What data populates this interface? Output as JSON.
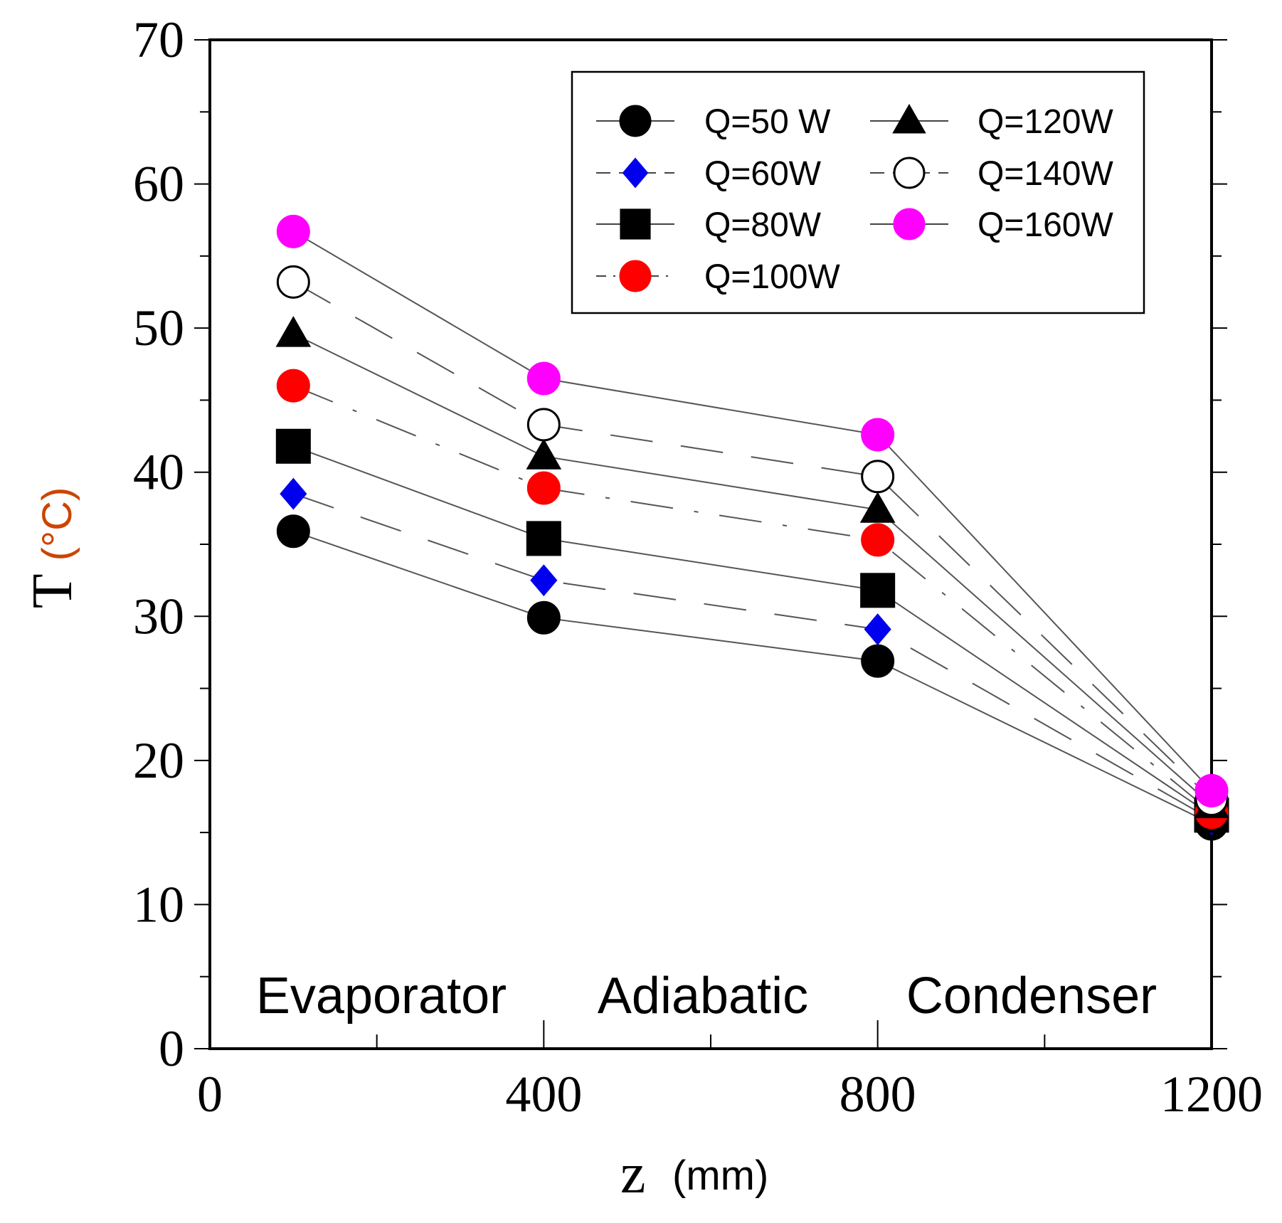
{
  "chart_data": {
    "type": "line",
    "title": "",
    "xlabel": {
      "symbol": "z",
      "unit": "(mm)"
    },
    "ylabel": {
      "symbol": "T",
      "unit": "(°C)"
    },
    "xlim": [
      0,
      1200
    ],
    "ylim": [
      0,
      70
    ],
    "x_ticks": [
      0,
      400,
      800,
      1200
    ],
    "y_ticks": [
      0,
      10,
      20,
      30,
      40,
      50,
      60,
      70
    ],
    "grid": false,
    "legend_position": "top-right",
    "regions": [
      "Evaporator",
      "Adiabatic",
      "Condenser"
    ],
    "x": [
      100,
      400,
      800,
      1200
    ],
    "series": [
      {
        "name": "Q=50 W",
        "marker": "circle",
        "filled": true,
        "color": "#000000",
        "line": "solid",
        "values": [
          35.9,
          29.9,
          26.9,
          15.6
        ]
      },
      {
        "name": "Q=60W",
        "marker": "diamond",
        "filled": true,
        "color": "#0000ee",
        "line": "dashed",
        "values": [
          38.5,
          32.5,
          29.1,
          15.9
        ]
      },
      {
        "name": "Q=80W",
        "marker": "square",
        "filled": true,
        "color": "#000000",
        "line": "solid",
        "values": [
          41.8,
          35.4,
          31.8,
          16.2
        ]
      },
      {
        "name": "Q=100W",
        "marker": "circle",
        "filled": true,
        "color": "#ff0000",
        "line": "dashdot",
        "values": [
          46.0,
          38.9,
          35.3,
          16.4
        ]
      },
      {
        "name": "Q=120W",
        "marker": "triangle",
        "filled": true,
        "color": "#000000",
        "line": "solid",
        "values": [
          49.6,
          41.1,
          37.4,
          16.9
        ]
      },
      {
        "name": "Q=140W",
        "marker": "circle",
        "filled": false,
        "color": "#000000",
        "line": "dashed",
        "values": [
          53.2,
          43.3,
          39.7,
          17.3
        ]
      },
      {
        "name": "Q=160W",
        "marker": "circle",
        "filled": true,
        "color": "#ff00ff",
        "line": "solid",
        "values": [
          56.7,
          46.5,
          42.6,
          17.9
        ]
      }
    ]
  }
}
